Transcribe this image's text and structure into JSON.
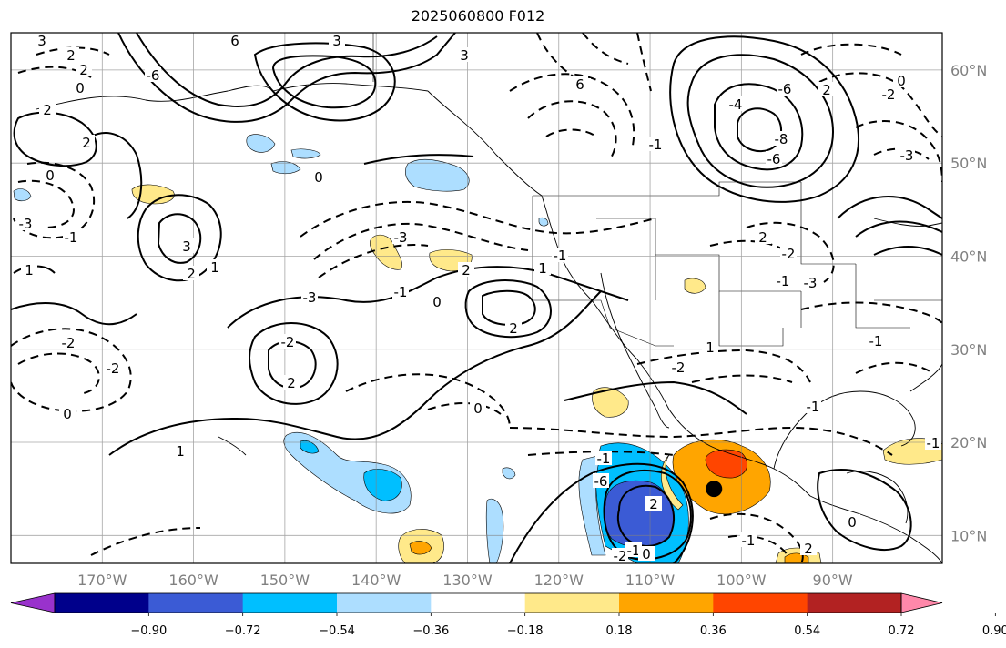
{
  "title": "2025060800 F012",
  "map": {
    "lon_range": [
      -180,
      -78
    ],
    "lat_range": [
      7,
      64
    ],
    "grid": true,
    "lon_ticks": [
      "170°W",
      "160°W",
      "150°W",
      "140°W",
      "130°W",
      "120°W",
      "110°W",
      "100°W",
      "90°W"
    ],
    "lat_ticks": [
      "10°N",
      "20°N",
      "30°N",
      "40°N",
      "50°N",
      "60°N"
    ],
    "storm_marker": {
      "lon": -103.0,
      "lat": 15.0
    }
  },
  "contour_labels": [
    "3",
    "2",
    "2",
    "0",
    "6",
    "3",
    "3",
    "2",
    "-6",
    "2",
    "2",
    "0",
    "0",
    "-3",
    "-1",
    "1",
    "3",
    "2",
    "1",
    "-1",
    "-3",
    "-3",
    "0",
    "2",
    "2",
    "1",
    "-1",
    "-2",
    "-2",
    "0",
    "1",
    "2",
    "-2",
    "0",
    "-1",
    "-6",
    "2",
    "-2",
    "-1",
    "0",
    "-1",
    "1",
    "-2",
    "-1",
    "-1",
    "2",
    "0",
    "-1",
    "-4",
    "6",
    "-8",
    "-6",
    "-6",
    "-1",
    "-2",
    "2",
    "-3",
    "2",
    "0",
    "-3",
    "-2",
    "-1"
  ],
  "colorbar": {
    "colors": [
      "#9932CC",
      "#00008B",
      "#3B5BD5",
      "#00BFFF",
      "#ADDEFF",
      "#FFFFFF",
      "#FFE98A",
      "#FFA500",
      "#FF4500",
      "#B22222",
      "#FF88AA"
    ],
    "tick_labels": [
      "−0.90",
      "−0.72",
      "−0.54",
      "−0.36",
      "−0.18",
      "0.18",
      "0.36",
      "0.54",
      "0.72",
      "0.90"
    ]
  }
}
